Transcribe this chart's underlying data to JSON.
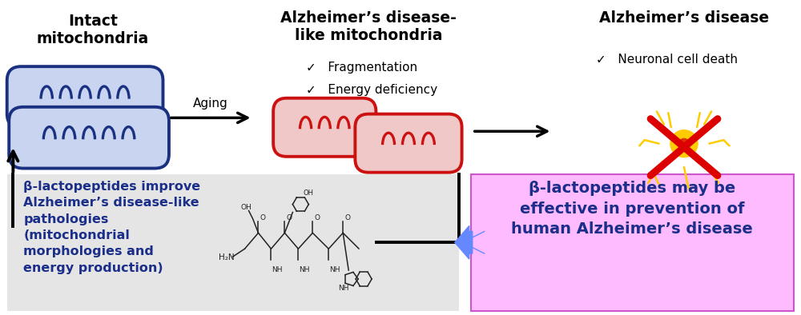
{
  "bg_color": "#ffffff",
  "black": "#000000",
  "blue_mito": "#1a3080",
  "blue_mito_fill": "#c8d4f0",
  "red_mito": "#cc1111",
  "red_mito_fill": "#f0c8c8",
  "blue_text": "#1a2e8a",
  "pink_box": "#ffbbff",
  "gray_box": "#e5e5e5",
  "yellow_neuron": "#ffcc00",
  "red_x": "#dd0000",
  "blue_arrow": "#6688ff",
  "texts": {
    "intact": "Intact\nmitochondria",
    "ad_like_title": "Alzheimer’s disease-\nlike mitochondria",
    "fragmentation": "✓   Fragmentation",
    "energy_def": "✓   Energy deficiency",
    "ad_title": "Alzheimer’s disease",
    "neuronal": "✓   Neuronal cell death",
    "aging": "Aging",
    "improve": "β-lactopeptides improve\nAlzheimer’s disease-like\npathologies\n(mitochondrial\nmorphologies and\nenergy production)",
    "effective": "β-lactopeptides may be\neffective in prevention of\nhuman Alzheimer’s disease"
  }
}
